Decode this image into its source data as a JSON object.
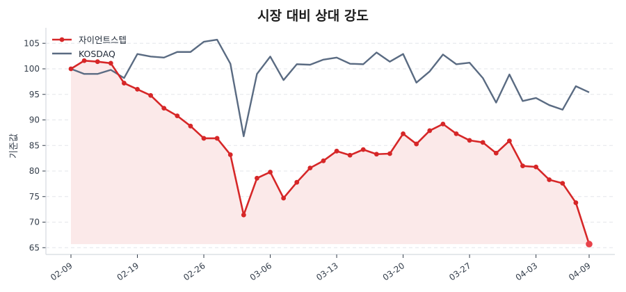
{
  "title": "시장 대비 상대 강도",
  "chart_data": {
    "type": "line",
    "title": "시장 대비 상대 강도",
    "xlabel": "",
    "ylabel": "기준값",
    "ylim": [
      64,
      108
    ],
    "yticks": [
      65,
      70,
      75,
      80,
      85,
      90,
      95,
      100,
      105
    ],
    "xtick_labels": [
      "02-09",
      "02-19",
      "02-26",
      "03-06",
      "03-13",
      "03-20",
      "03-27",
      "04-03",
      "04-09"
    ],
    "xtick_indices": [
      0,
      5,
      10,
      15,
      20,
      25,
      30,
      35,
      39
    ],
    "grid": "horizontal dashed",
    "legend_position": "upper left",
    "series": [
      {
        "name": "자이언트스텝",
        "color": "#d62728",
        "marker": "circle",
        "fill": true,
        "fill_color": "#fbe9e9",
        "values": [
          100.0,
          101.6,
          101.4,
          101.1,
          97.2,
          96.0,
          94.8,
          92.3,
          90.8,
          88.8,
          86.4,
          86.4,
          83.2,
          71.4,
          78.6,
          79.8,
          74.7,
          77.8,
          80.6,
          82.0,
          83.9,
          83.1,
          84.2,
          83.3,
          83.4,
          87.3,
          85.3,
          87.9,
          89.2,
          87.3,
          86.0,
          85.6,
          83.5,
          85.9,
          81.0,
          80.8,
          78.3,
          77.6,
          73.8,
          65.7
        ]
      },
      {
        "name": "KOSDAQ",
        "color": "#5a6b82",
        "marker": "none",
        "fill": false,
        "values": [
          100.0,
          99.0,
          99.0,
          99.8,
          98.2,
          102.9,
          102.4,
          102.2,
          103.3,
          103.3,
          105.3,
          105.7,
          101.0,
          86.8,
          99.0,
          102.4,
          97.8,
          100.9,
          100.8,
          101.8,
          102.2,
          101.0,
          100.9,
          103.2,
          101.4,
          102.9,
          97.3,
          99.5,
          102.8,
          100.9,
          101.2,
          98.2,
          93.4,
          98.9,
          93.7,
          94.3,
          92.9,
          92.0,
          96.6,
          95.4
        ]
      }
    ]
  }
}
